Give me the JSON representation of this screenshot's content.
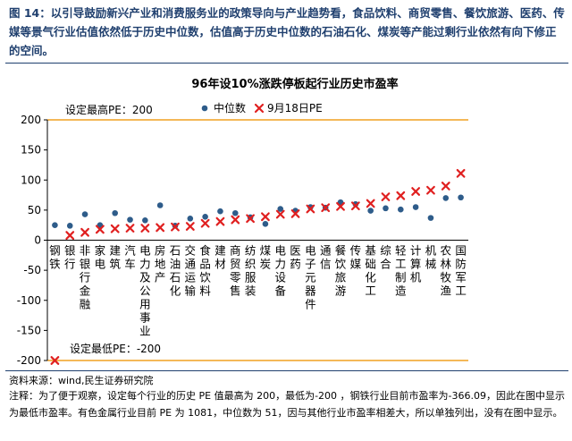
{
  "figure": {
    "title": "图 14：以引导鼓励新兴产业和消费服务业的政策导向与产业趋势看，食品饮料、商贸零售、餐饮旅游、医药、传媒等景气行业估值依然低于历史中位数，估值高于历史中位数的石油石化、煤炭等产能过剩行业依然有向下修正的空间。",
    "source": "资料来源：wind,民生证券研究院",
    "note": "注释：为了便于观察，设定每个行业的历史 PE 值最高为 200，最低为-200 ，钢铁行业目前市盈率为-366.09，因此在图中显示为最低市盈率。有色金属行业目前 PE 为 1081，中位数为 51，因与其他行业市盈率相差大，所以单独列出，没有在图中显示。"
  },
  "chart_data": {
    "type": "scatter",
    "title": "96年设10%涨跌停板起行业历史市盈率",
    "categories": [
      "钢铁",
      "银行",
      "非银行金融",
      "家电",
      "建筑",
      "汽车",
      "电力及公用事业",
      "房地产",
      "石油石化",
      "交通运输",
      "食品饮料",
      "建材",
      "商贸零售",
      "纺织服装",
      "煤炭",
      "电力设备",
      "医药",
      "电子元器件",
      "通信",
      "餐饮旅游",
      "传媒",
      "基础化工",
      "综合",
      "轻工制造",
      "计算机",
      "机械",
      "农林牧渔",
      "国防军工"
    ],
    "series": [
      {
        "name": "中位数",
        "color": "#2e5c8a",
        "marker": "circle",
        "values": [
          25,
          24,
          43,
          25,
          45,
          34,
          33,
          58,
          24,
          36,
          39,
          48,
          45,
          38,
          27,
          52,
          49,
          55,
          54,
          63,
          60,
          49,
          53,
          51,
          55,
          37,
          70,
          71
        ]
      },
      {
        "name": "9月18日PE",
        "color": "#e02020",
        "marker": "x",
        "values": [
          -200,
          8,
          13,
          18,
          19,
          20,
          20,
          21,
          22,
          23,
          28,
          31,
          34,
          36,
          39,
          43,
          44,
          52,
          54,
          56,
          57,
          61,
          72,
          74,
          81,
          83,
          90,
          111
        ]
      }
    ],
    "ylim": [
      -200,
      200
    ],
    "yticks": [
      -200,
      -150,
      -100,
      -50,
      0,
      50,
      100,
      150,
      200
    ],
    "ref_lines": [
      {
        "value": 200,
        "label": "设定最高PE：200"
      },
      {
        "value": -200,
        "label": "设定最低PE：-200"
      }
    ],
    "legend_position": "top-center",
    "grid": false
  }
}
